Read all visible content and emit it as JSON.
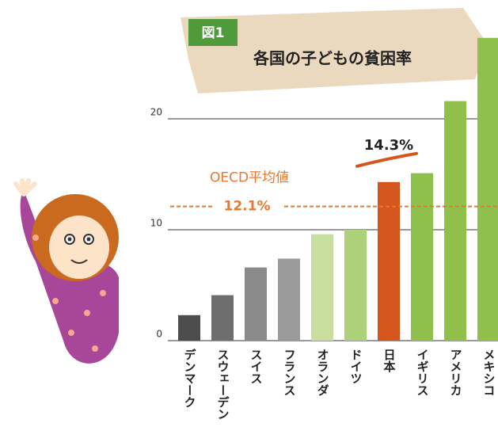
{
  "chart_data": {
    "type": "bar",
    "badge": "図1",
    "title": "各国の子どもの貧困率",
    "categories": [
      "デンマーク",
      "スウェーデン",
      "スイス",
      "フランス",
      "オランダ",
      "ドイツ",
      "日本",
      "イギリス",
      "アメリカ",
      "メキシコ"
    ],
    "values": [
      2.3,
      4.1,
      6.6,
      7.4,
      9.6,
      10.0,
      14.3,
      15.1,
      21.6,
      27.3
    ],
    "value_labels": [
      null,
      null,
      null,
      null,
      null,
      null,
      "14.3%",
      null,
      null,
      null
    ],
    "colors": [
      "#4d4d4d",
      "#6e6e6e",
      "#8a8a8a",
      "#9b9b9b",
      "#c9df9f",
      "#add07a",
      "#d4561c",
      "#8fc04c",
      "#8fc04c",
      "#8fc04c"
    ],
    "highlight_color": "#d4561c",
    "reference_line": {
      "label": "OECD平均値",
      "value": 12.1,
      "value_label": "12.1%",
      "color": "#e8782e"
    },
    "ylim": [
      0,
      29
    ],
    "yticks": [
      0,
      10,
      20
    ],
    "grid": true
  }
}
